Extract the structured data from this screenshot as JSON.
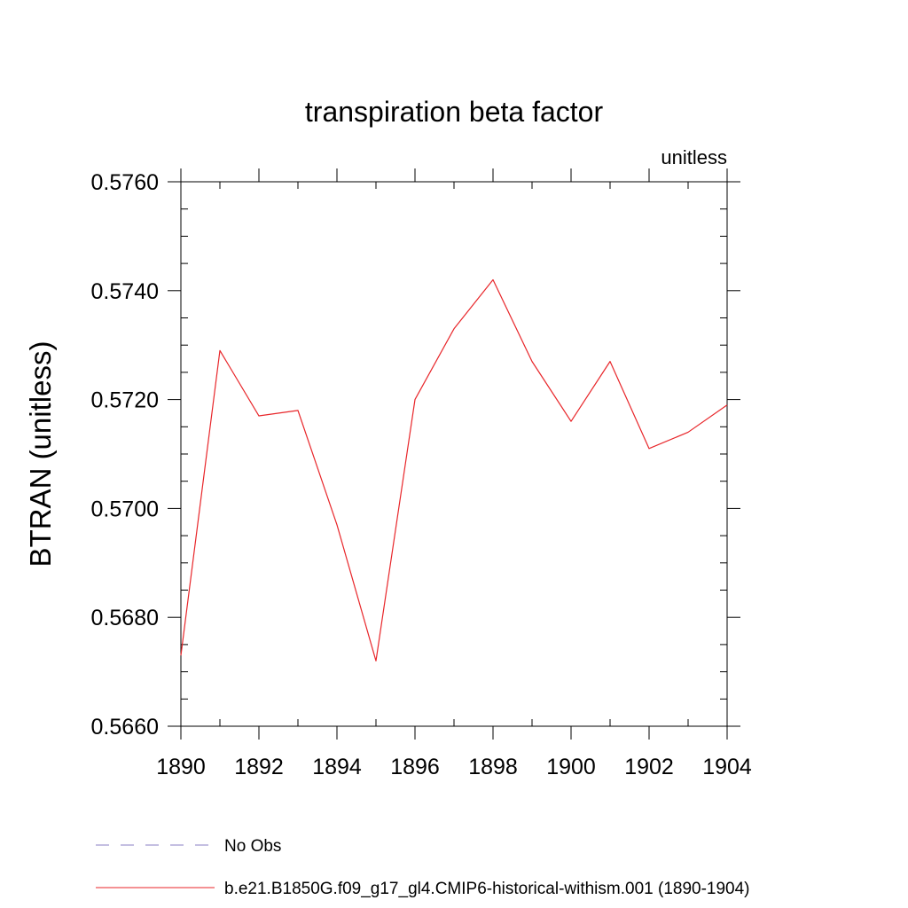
{
  "chart_data": {
    "type": "line",
    "title": "transpiration beta factor",
    "units_label": "unitless",
    "xlabel": "",
    "ylabel": "BTRAN  (unitless)",
    "xlim": [
      1890,
      1904
    ],
    "ylim": [
      0.566,
      0.576
    ],
    "x_ticks": [
      1890,
      1892,
      1894,
      1896,
      1898,
      1900,
      1902,
      1904
    ],
    "x_tick_labels": [
      "1890",
      "1892",
      "1894",
      "1896",
      "1898",
      "1900",
      "1902",
      "1904"
    ],
    "y_ticks": [
      0.566,
      0.568,
      0.57,
      0.572,
      0.574,
      0.576
    ],
    "y_tick_labels": [
      "0.5660",
      "0.5680",
      "0.5700",
      "0.5720",
      "0.5740",
      "0.5760"
    ],
    "grid": false,
    "legend_position": "bottom-left",
    "x": [
      1890,
      1891,
      1892,
      1893,
      1894,
      1895,
      1896,
      1897,
      1898,
      1899,
      1900,
      1901,
      1902,
      1903,
      1904
    ],
    "series": [
      {
        "name": "b.e21.B1850G.f09_g17_gl4.CMIP6-historical-withism.001 (1890-1904)",
        "color": "#e8262a",
        "dash": "solid",
        "values": [
          0.5673,
          0.5729,
          0.5717,
          0.5718,
          0.5697,
          0.5672,
          0.572,
          0.5733,
          0.5742,
          0.5727,
          0.5716,
          0.5727,
          0.5711,
          0.5714,
          0.5719
        ]
      }
    ],
    "legend": [
      {
        "label": "No Obs",
        "color": "#8a7fc4",
        "dash": "dashed"
      },
      {
        "label": "b.e21.B1850G.f09_g17_gl4.CMIP6-historical-withism.001 (1890-1904)",
        "color": "#e8262a",
        "dash": "solid"
      }
    ]
  }
}
